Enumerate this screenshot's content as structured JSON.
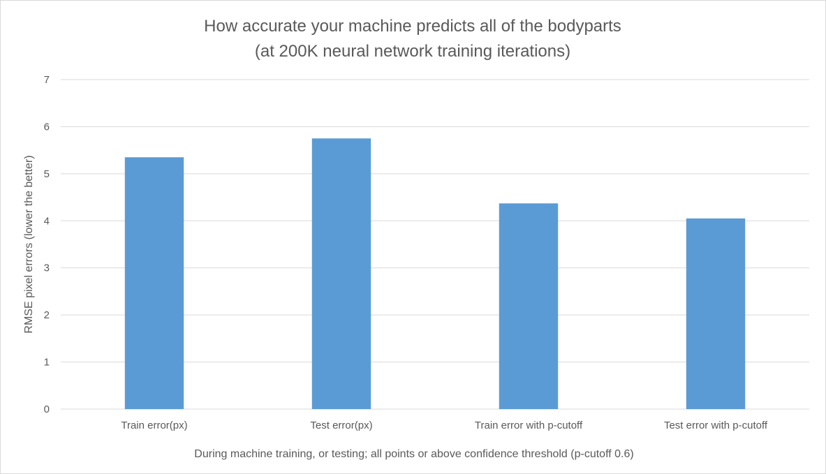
{
  "chart_data": {
    "type": "bar",
    "title_lines": [
      "How accurate your machine predicts all of the bodyparts",
      "(at 200K neural network training iterations)"
    ],
    "xlabel": "During machine training, or testing; all points or above confidence threshold (p-cutoff 0.6)",
    "ylabel": "RMSE pixel errors (lower the better)",
    "categories": [
      "Train error(px)",
      "Test error(px)",
      "Train error with p-cutoff",
      "Test error with p-cutoff"
    ],
    "values": [
      5.35,
      5.75,
      4.37,
      4.05
    ],
    "ylim": [
      0,
      7
    ],
    "yticks": [
      "0",
      "1",
      "2",
      "3",
      "4",
      "5",
      "6",
      "7"
    ],
    "grid": true,
    "legend": "none",
    "bar_color": "#5B9BD5",
    "grid_color": "#d9d9d9",
    "text_color": "#595959"
  }
}
